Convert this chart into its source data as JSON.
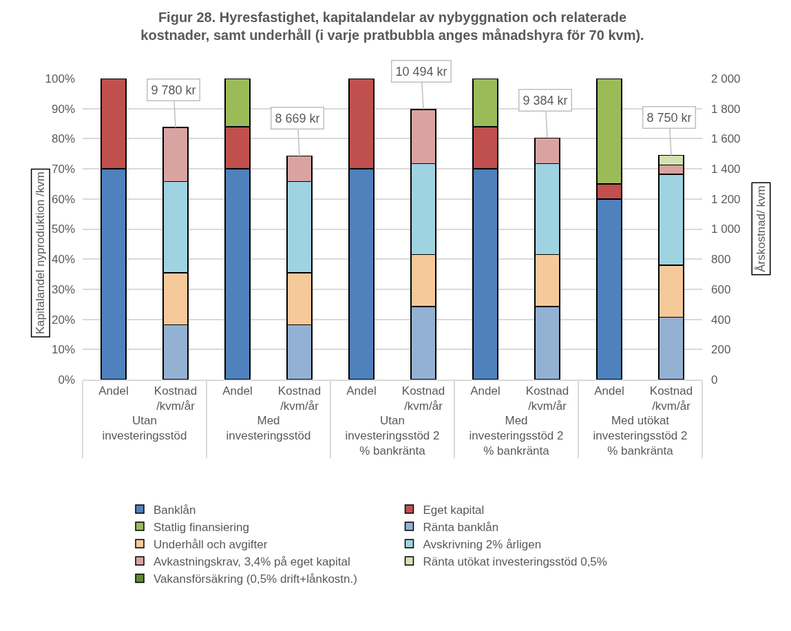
{
  "chart_data": {
    "type": "bar",
    "title": "Figur 28. Hyresfastighet, kapitalandelar av nybyggnation och relaterade kostnader, samt underhåll (i varje pratbubbla anges månadshyra för 70 kvm).",
    "ylabel": "Årskostnad/ kvm",
    "y2label": "Kapitalandel nyproduktion /kvm",
    "categories": [
      "Andel",
      "Kostnad /kvm/år",
      "Andel",
      "Kostnad /kvm/år",
      "Andel",
      "Kostnad /kvm/år",
      "Andel",
      "Kostnad /kvm/år",
      "Andel",
      "Kostnad /kvm/år"
    ],
    "annotations": [
      "Utan investeringsstöd",
      "Med investeringsstöd",
      "Utan investeringsstöd 2 % bankränta",
      "Med investeringsstöd 2 % bankränta",
      "Med utökat investeringsstöd 2 % bankränta",
      {
        "text": "9 780 kr",
        "y": 1675
      },
      {
        "text": "8 669 kr",
        "y": 1485
      },
      {
        "text": "10 494 kr",
        "y": 1795
      },
      {
        "text": "9 384 kr",
        "y": 1605
      },
      {
        "text": "8 750 kr",
        "y": 1490
      }
    ],
    "stacked": true,
    "series": [
      {
        "name": "Banklån",
        "color": "#4f81bd",
        "axis": "y2",
        "values": [
          70,
          null,
          70,
          null,
          70,
          null,
          70,
          null,
          60,
          null
        ]
      },
      {
        "name": "Eget kapital",
        "color": "#c0504d",
        "axis": "y2",
        "values": [
          30,
          null,
          14,
          null,
          30,
          null,
          14,
          null,
          5,
          null
        ]
      },
      {
        "name": "Statlig finansiering",
        "color": "#9bbb59",
        "axis": "y2",
        "values": [
          null,
          null,
          16,
          null,
          null,
          null,
          16,
          null,
          35,
          null
        ]
      },
      {
        "name": "Ränta banklån",
        "color": "#93b1d2",
        "values": [
          null,
          365,
          null,
          365,
          null,
          485,
          null,
          485,
          null,
          415
        ]
      },
      {
        "name": "Underhåll och avgifter",
        "color": "#f5c999",
        "values": [
          null,
          345,
          null,
          345,
          null,
          345,
          null,
          345,
          null,
          345
        ]
      },
      {
        "name": "Avskrivning 2% årligen",
        "color": "#9fd3e1",
        "values": [
          null,
          605,
          null,
          605,
          null,
          605,
          null,
          605,
          null,
          605
        ]
      },
      {
        "name": "Avkastningskrav, 3,4% på eget kapital",
        "color": "#d9a3a1",
        "values": [
          null,
          360,
          null,
          170,
          null,
          360,
          null,
          170,
          null,
          60
        ]
      },
      {
        "name": "Ränta utökat investeringsstöd 0,5%",
        "color": "#d3e2b1",
        "values": [
          null,
          null,
          null,
          null,
          null,
          null,
          null,
          null,
          null,
          65
        ]
      },
      {
        "name": "Vakansförsäkring (0,5% drift+lånkostn.)",
        "color": "#5e8b2f",
        "values": [
          null,
          null,
          null,
          null,
          null,
          null,
          null,
          null,
          null,
          null
        ]
      }
    ],
    "ylim": [
      0,
      2000
    ],
    "yticks": [
      0,
      200,
      400,
      600,
      800,
      {
        "value": 1000,
        "label": "1 000"
      },
      {
        "value": 1200,
        "label": "1 200"
      },
      {
        "value": 1400,
        "label": "1 400"
      },
      {
        "value": 1600,
        "label": "1 600"
      },
      {
        "value": 1800,
        "label": "1 800"
      },
      {
        "value": 2000,
        "label": "2 000"
      }
    ],
    "y2lim": [
      0,
      100
    ],
    "y2ticks": [
      {
        "value": 0,
        "label": "0%"
      },
      {
        "value": 10,
        "label": "10%"
      },
      {
        "value": 20,
        "label": "20%"
      },
      {
        "value": 30,
        "label": "30%"
      },
      {
        "value": 40,
        "label": "40%"
      },
      {
        "value": 50,
        "label": "50%"
      },
      {
        "value": 60,
        "label": "60%"
      },
      {
        "value": 70,
        "label": "70%"
      },
      {
        "value": 80,
        "label": "80%"
      },
      {
        "value": 90,
        "label": "90%"
      },
      {
        "value": 100,
        "label": "100%"
      }
    ],
    "grid": "y",
    "legend": "bottom"
  }
}
